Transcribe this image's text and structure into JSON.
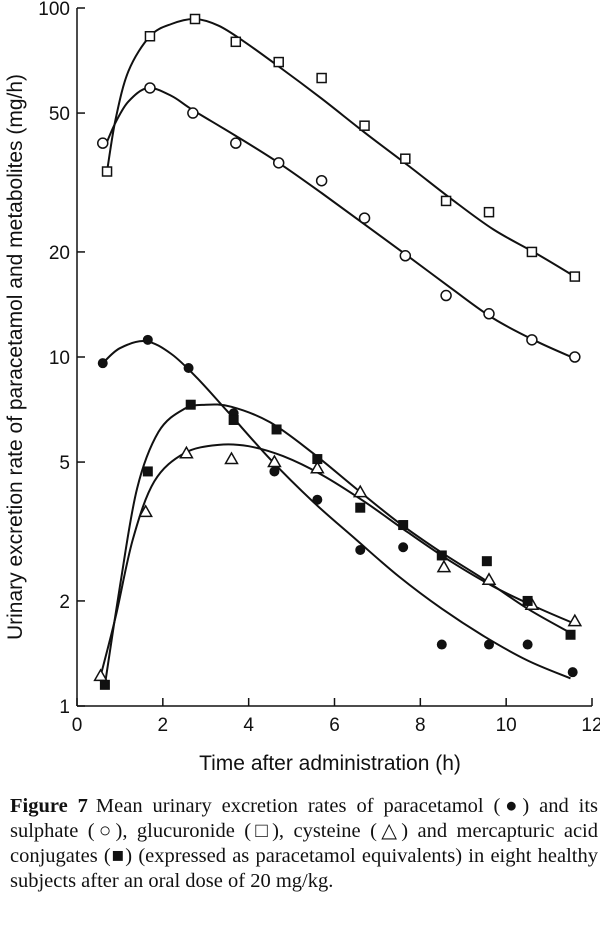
{
  "chart_data": {
    "type": "scatter",
    "xlabel": "Time after administration (h)",
    "ylabel": "Urinary excretion rate of paracetamol and metabolites (mg/h)",
    "xlim": [
      0,
      12
    ],
    "ylim": [
      1,
      100
    ],
    "yscale": "log",
    "xticks": [
      0,
      2,
      4,
      6,
      8,
      10,
      12
    ],
    "yticks": [
      1,
      2,
      5,
      10,
      20,
      50,
      100
    ],
    "grid": false,
    "series": [
      {
        "marker": "open-square",
        "x": [
          0.7,
          1.7,
          2.75,
          3.7,
          4.7,
          5.7,
          6.7,
          7.65,
          8.6,
          9.6,
          10.6,
          11.6
        ],
        "y": [
          34,
          83,
          93,
          80,
          70,
          63,
          46,
          37,
          28,
          26,
          20,
          17
        ],
        "curve": [
          [
            0.7,
            34
          ],
          [
            0.9,
            48
          ],
          [
            1.2,
            66
          ],
          [
            1.7,
            83
          ],
          [
            2.2,
            90
          ],
          [
            2.75,
            93
          ],
          [
            3.3,
            89
          ],
          [
            3.9,
            80
          ],
          [
            4.7,
            68
          ],
          [
            5.7,
            55
          ],
          [
            6.7,
            44
          ],
          [
            7.7,
            35.5
          ],
          [
            8.7,
            28.5
          ],
          [
            9.7,
            23.2
          ],
          [
            10.7,
            19.8
          ],
          [
            11.6,
            17
          ]
        ]
      },
      {
        "marker": "open-circle",
        "x": [
          0.6,
          1.7,
          2.7,
          3.7,
          4.7,
          5.7,
          6.7,
          7.65,
          8.6,
          9.6,
          10.6,
          11.6
        ],
        "y": [
          41,
          59,
          50,
          41,
          36,
          32,
          25,
          19.5,
          15,
          13.3,
          11.2,
          10
        ],
        "curve": [
          [
            0.65,
            40
          ],
          [
            0.9,
            47
          ],
          [
            1.2,
            54
          ],
          [
            1.65,
            59
          ],
          [
            2.2,
            56
          ],
          [
            2.7,
            51
          ],
          [
            3.7,
            43
          ],
          [
            4.7,
            36
          ],
          [
            5.7,
            29.5
          ],
          [
            6.7,
            24
          ],
          [
            7.7,
            19.5
          ],
          [
            8.7,
            15.8
          ],
          [
            9.7,
            12.9
          ],
          [
            10.7,
            11.1
          ],
          [
            11.6,
            9.9
          ]
        ]
      },
      {
        "marker": "filled-circle",
        "x": [
          0.6,
          1.65,
          2.6,
          3.65,
          4.6,
          5.6,
          6.6,
          7.6,
          8.5,
          9.6,
          10.5,
          11.55
        ],
        "y": [
          9.6,
          11.2,
          9.3,
          6.9,
          4.7,
          3.9,
          2.8,
          2.85,
          1.5,
          1.5,
          1.5,
          1.25
        ],
        "curve": [
          [
            0.6,
            9.6
          ],
          [
            1.0,
            10.6
          ],
          [
            1.6,
            11.1
          ],
          [
            2.2,
            10.2
          ],
          [
            2.8,
            8.7
          ],
          [
            3.5,
            7.0
          ],
          [
            4.5,
            5.1
          ],
          [
            5.5,
            3.85
          ],
          [
            6.5,
            3.0
          ],
          [
            7.5,
            2.35
          ],
          [
            8.5,
            1.9
          ],
          [
            9.5,
            1.58
          ],
          [
            10.5,
            1.35
          ],
          [
            11.5,
            1.2
          ]
        ]
      },
      {
        "marker": "open-triangle",
        "x": [
          0.55,
          1.6,
          2.55,
          3.6,
          4.6,
          5.6,
          6.6,
          8.55,
          9.6,
          10.6,
          11.6
        ],
        "y": [
          1.22,
          3.6,
          5.3,
          5.1,
          5.0,
          4.8,
          4.1,
          2.5,
          2.3,
          1.95,
          1.75
        ],
        "curve": [
          [
            0.55,
            1.22
          ],
          [
            0.9,
            1.8
          ],
          [
            1.3,
            3.0
          ],
          [
            1.8,
            4.4
          ],
          [
            2.5,
            5.3
          ],
          [
            3.3,
            5.6
          ],
          [
            4.0,
            5.55
          ],
          [
            4.8,
            5.2
          ],
          [
            5.7,
            4.6
          ],
          [
            6.7,
            3.85
          ],
          [
            7.7,
            3.15
          ],
          [
            8.7,
            2.6
          ],
          [
            9.7,
            2.2
          ],
          [
            10.7,
            1.92
          ],
          [
            11.6,
            1.72
          ]
        ]
      },
      {
        "marker": "filled-square",
        "x": [
          0.65,
          1.65,
          2.65,
          3.65,
          4.65,
          5.6,
          6.6,
          7.6,
          8.5,
          9.55,
          10.5,
          11.5
        ],
        "y": [
          1.15,
          4.7,
          7.3,
          6.6,
          6.2,
          5.1,
          3.7,
          3.3,
          2.7,
          2.6,
          2.0,
          1.6
        ],
        "curve": [
          [
            0.65,
            1.15
          ],
          [
            1.0,
            2.2
          ],
          [
            1.4,
            4.2
          ],
          [
            1.9,
            6.1
          ],
          [
            2.5,
            7.1
          ],
          [
            3.0,
            7.3
          ],
          [
            3.6,
            7.2
          ],
          [
            4.5,
            6.5
          ],
          [
            5.5,
            5.3
          ],
          [
            6.5,
            4.2
          ],
          [
            7.5,
            3.35
          ],
          [
            8.5,
            2.75
          ],
          [
            9.5,
            2.3
          ],
          [
            10.5,
            1.9
          ],
          [
            11.5,
            1.62
          ]
        ]
      }
    ]
  },
  "caption": {
    "label": "Figure 7",
    "text": "Mean urinary excretion rates of paracetamol (●) and its sulphate (○), glucuronide (□), cysteine (△) and mercapturic acid conjugates (■) (expressed as paracetamol equivalents) in eight healthy subjects after an oral dose of 20 mg/kg."
  }
}
